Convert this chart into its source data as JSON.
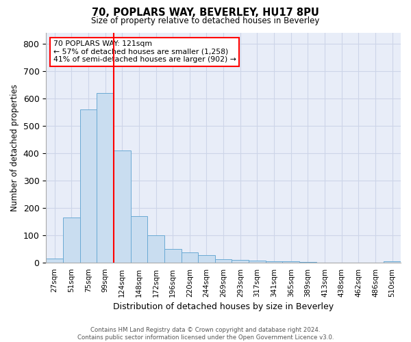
{
  "title1": "70, POPLARS WAY, BEVERLEY, HU17 8PU",
  "title2": "Size of property relative to detached houses in Beverley",
  "xlabel": "Distribution of detached houses by size in Beverley",
  "ylabel": "Number of detached properties",
  "categories": [
    "27sqm",
    "51sqm",
    "75sqm",
    "99sqm",
    "124sqm",
    "148sqm",
    "172sqm",
    "196sqm",
    "220sqm",
    "244sqm",
    "269sqm",
    "293sqm",
    "317sqm",
    "341sqm",
    "365sqm",
    "389sqm",
    "413sqm",
    "438sqm",
    "462sqm",
    "486sqm",
    "510sqm"
  ],
  "values": [
    15,
    165,
    560,
    620,
    410,
    170,
    100,
    50,
    38,
    28,
    12,
    10,
    7,
    4,
    4,
    3,
    1,
    0,
    0,
    0,
    5
  ],
  "bar_color": "#c9ddf0",
  "bar_edge_color": "#6aaad4",
  "annotation_text": "70 POPLARS WAY: 121sqm\n← 57% of detached houses are smaller (1,258)\n41% of semi-detached houses are larger (902) →",
  "annotation_box_color": "white",
  "annotation_box_edge_color": "red",
  "vline_color": "red",
  "vline_x_index": 3,
  "ylim": [
    0,
    840
  ],
  "yticks": [
    0,
    100,
    200,
    300,
    400,
    500,
    600,
    700,
    800
  ],
  "grid_color": "#cdd5e8",
  "background_color": "#e8edf8",
  "footer1": "Contains HM Land Registry data © Crown copyright and database right 2024.",
  "footer2": "Contains public sector information licensed under the Open Government Licence v3.0."
}
